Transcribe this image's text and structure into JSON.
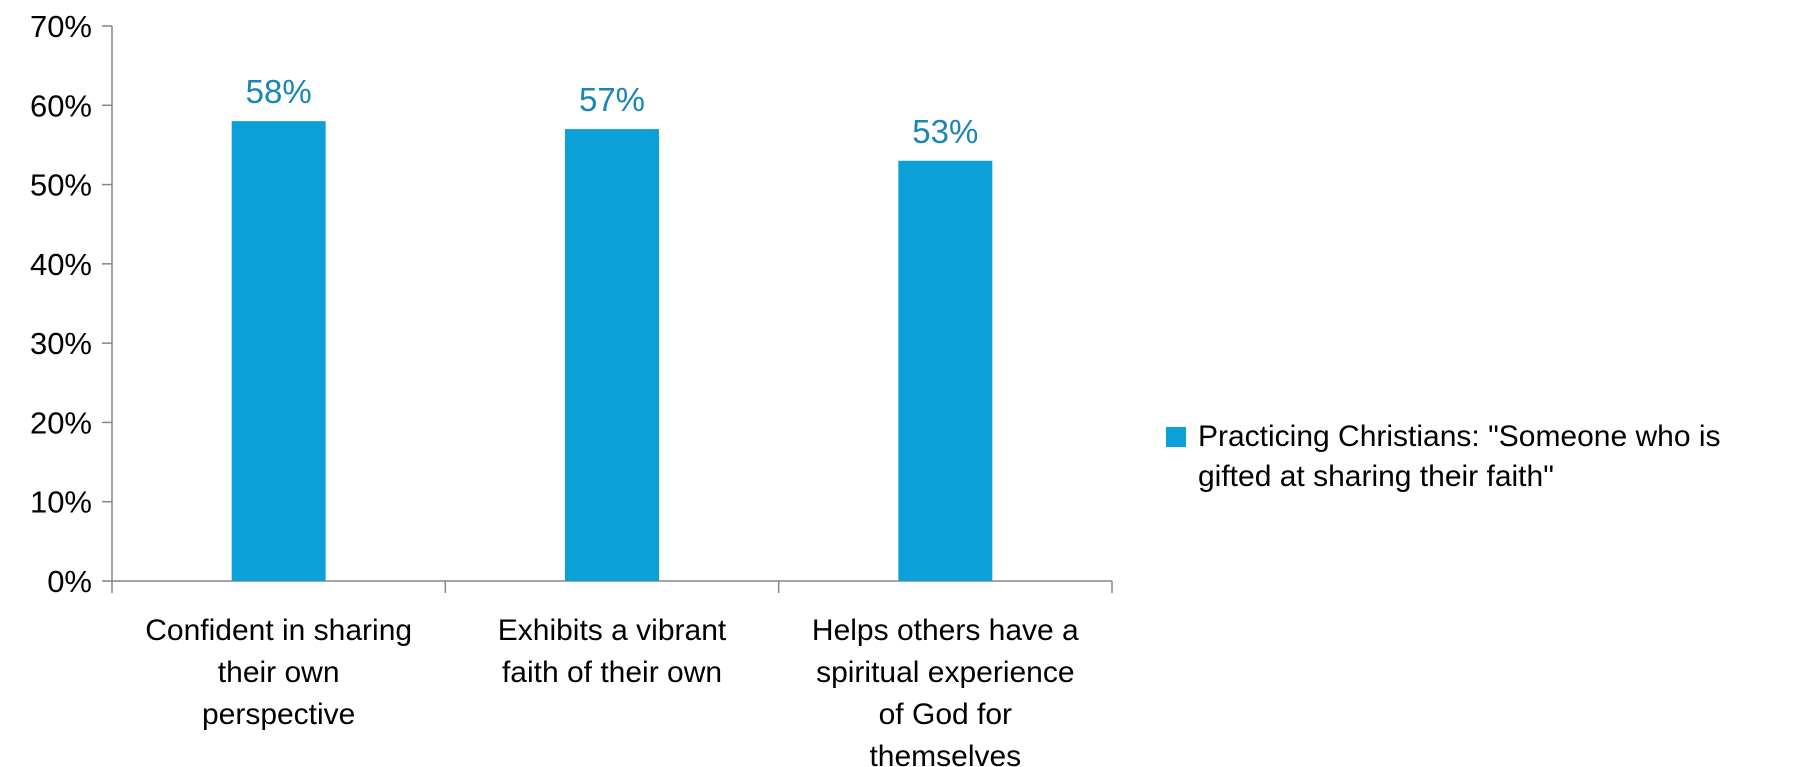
{
  "chart_data": {
    "type": "bar",
    "categories": [
      [
        "Confident in sharing",
        "their own",
        "perspective"
      ],
      [
        "Exhibits a vibrant",
        "faith of their own"
      ],
      [
        "Helps others have a",
        "spiritual experience",
        "of God for",
        "themselves"
      ]
    ],
    "series": [
      {
        "name": "Practicing Christians: \"Someone who is gifted at sharing their faith\"",
        "legend_lines": [
          "Practicing Christians: \"Someone who is",
          "gifted at sharing their faith\""
        ],
        "values": [
          58,
          57,
          53
        ],
        "data_labels": [
          "58%",
          "57%",
          "53%"
        ],
        "color": "#0ca0d8"
      }
    ],
    "ylim": [
      0,
      70
    ],
    "yticks": [
      0,
      10,
      20,
      30,
      40,
      50,
      60,
      70
    ],
    "ytick_labels": [
      "0%",
      "10%",
      "20%",
      "30%",
      "40%",
      "50%",
      "60%",
      "70%"
    ],
    "data_label_color": "#1a86b4",
    "axis_color": "#868686",
    "grid": false,
    "legend_position": "right",
    "title": "",
    "xlabel": "",
    "ylabel": ""
  }
}
